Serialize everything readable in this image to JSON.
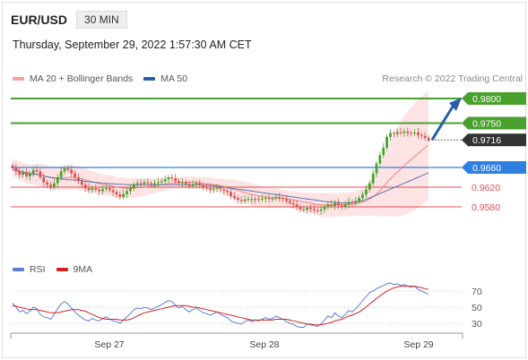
{
  "header": {
    "symbol": "EUR/USD",
    "timeframe": "30 MIN"
  },
  "datetime": "Thursday, September 29, 2022 1:57:30 AM CET",
  "credit": "Research © 2022 Trading Central",
  "colors": {
    "up_candle": "#4aa02c",
    "down_candle": "#d9534f",
    "bb_fill": "#fde0e0",
    "ma20": "#f08080",
    "ma50": "#5577bb",
    "resistance": "#4aa02c",
    "pivot": "#2f7fe0",
    "support": "#e05050",
    "arrow": "#2a5da8",
    "rsi": "#5b7fd6",
    "rsi_ma": "#d62020",
    "last_price_bg": "#333333"
  },
  "chart_data": [
    {
      "type": "candlestick",
      "title": "",
      "legend": [
        {
          "name": "MA 20 + Bollinger Bands",
          "color": "#f08080"
        },
        {
          "name": "MA 50",
          "color": "#2a5da8"
        }
      ],
      "legend_position": "top-left",
      "x_ticks": [
        "Sep 27",
        "Sep 28",
        "Sep 29"
      ],
      "ylim": [
        0.952,
        0.984
      ],
      "grid": false,
      "close": [
        0.966,
        0.9652,
        0.9645,
        0.965,
        0.9642,
        0.9648,
        0.9655,
        0.9652,
        0.964,
        0.963,
        0.9625,
        0.962,
        0.9628,
        0.964,
        0.9652,
        0.9658,
        0.9655,
        0.9648,
        0.964,
        0.9632,
        0.9625,
        0.9618,
        0.9614,
        0.9618,
        0.9615,
        0.9612,
        0.9616,
        0.9618,
        0.9614,
        0.961,
        0.9605,
        0.96,
        0.9606,
        0.9612,
        0.9618,
        0.9625,
        0.9628,
        0.9627,
        0.963,
        0.9628,
        0.9626,
        0.9628,
        0.963,
        0.9632,
        0.9636,
        0.964,
        0.9638,
        0.9632,
        0.9628,
        0.963,
        0.9626,
        0.9622,
        0.9625,
        0.9628,
        0.9624,
        0.962,
        0.9618,
        0.9615,
        0.9617,
        0.9619,
        0.9616,
        0.9613,
        0.961,
        0.9602,
        0.9598,
        0.9594,
        0.9592,
        0.9595,
        0.9596,
        0.9594,
        0.9596,
        0.9595,
        0.9597,
        0.9598,
        0.9596,
        0.9597,
        0.96,
        0.9598,
        0.9596,
        0.9592,
        0.9588,
        0.9585,
        0.958,
        0.9575,
        0.9574,
        0.9578,
        0.9576,
        0.9573,
        0.9572,
        0.9575,
        0.958,
        0.9585,
        0.9582,
        0.9588,
        0.9583,
        0.958,
        0.9585,
        0.959,
        0.9588,
        0.9592,
        0.9598,
        0.9605,
        0.9615,
        0.9628,
        0.9648,
        0.9668,
        0.9685,
        0.97,
        0.9722,
        0.973,
        0.9728,
        0.9732,
        0.973,
        0.9733,
        0.973,
        0.9729,
        0.9731,
        0.9726,
        0.9724,
        0.972,
        0.9716
      ],
      "series": [
        {
          "name": "MA 20",
          "values": [
            0.966,
            0.9657,
            0.9653,
            0.965,
            0.9647,
            0.9646,
            0.9646,
            0.9646,
            0.9645,
            0.9643,
            0.9641,
            0.9639,
            0.9638,
            0.9638,
            0.9638,
            0.9639,
            0.9639,
            0.964,
            0.9639,
            0.9638,
            0.9637,
            0.9635,
            0.9633,
            0.9631,
            0.9629,
            0.9627,
            0.9625,
            0.9624,
            0.9623,
            0.9622,
            0.962,
            0.9619,
            0.9618,
            0.9618,
            0.9618,
            0.9618,
            0.9619,
            0.9619,
            0.962,
            0.9621,
            0.9622,
            0.9623,
            0.9624,
            0.9625,
            0.9626,
            0.9627,
            0.9628,
            0.9629,
            0.9629,
            0.963,
            0.963,
            0.963,
            0.963,
            0.9629,
            0.9629,
            0.9628,
            0.9627,
            0.9626,
            0.9625,
            0.9624,
            0.9623,
            0.9621,
            0.9619,
            0.9617,
            0.9615,
            0.9613,
            0.9611,
            0.9609,
            0.9607,
            0.9605,
            0.9604,
            0.9602,
            0.9601,
            0.96,
            0.9599,
            0.9598,
            0.9598,
            0.9597,
            0.9597,
            0.9596,
            0.9595,
            0.9594,
            0.9593,
            0.9591,
            0.959,
            0.9589,
            0.9588,
            0.9586,
            0.9585,
            0.9584,
            0.9584,
            0.9584,
            0.9584,
            0.9584,
            0.9584,
            0.9585,
            0.9585,
            0.9585,
            0.9586,
            0.9587,
            0.9588,
            0.959,
            0.9592,
            0.9596,
            0.96,
            0.9606,
            0.9613,
            0.9621,
            0.9629,
            0.9637,
            0.9644,
            0.9651,
            0.9657,
            0.9664,
            0.967,
            0.9676,
            0.9682,
            0.9688,
            0.9694,
            0.97,
            0.9705
          ]
        },
        {
          "name": "MA 50",
          "values": [
            0.9655,
            0.9654,
            0.9652,
            0.9651,
            0.965,
            0.9648,
            0.9647,
            0.9646,
            0.9645,
            0.9643,
            0.9641,
            0.964,
            0.9639,
            0.9638,
            0.9637,
            0.9636,
            0.9635,
            0.9635,
            0.9634,
            0.9634,
            0.9633,
            0.9632,
            0.9631,
            0.963,
            0.963,
            0.9629,
            0.9628,
            0.9628,
            0.9627,
            0.9627,
            0.9626,
            0.9626,
            0.9626,
            0.9625,
            0.9625,
            0.9625,
            0.9625,
            0.9625,
            0.9625,
            0.9625,
            0.9625,
            0.9625,
            0.9625,
            0.9625,
            0.9625,
            0.9625,
            0.9625,
            0.9625,
            0.9625,
            0.9625,
            0.9625,
            0.9625,
            0.9625,
            0.9625,
            0.9625,
            0.9624,
            0.9624,
            0.9623,
            0.9623,
            0.9622,
            0.9621,
            0.962,
            0.9619,
            0.9618,
            0.9617,
            0.9616,
            0.9615,
            0.9614,
            0.9613,
            0.9612,
            0.9611,
            0.961,
            0.9609,
            0.9608,
            0.9607,
            0.9606,
            0.9605,
            0.9604,
            0.9603,
            0.9602,
            0.9601,
            0.96,
            0.9599,
            0.9598,
            0.9597,
            0.9596,
            0.9595,
            0.9594,
            0.9593,
            0.9592,
            0.9591,
            0.959,
            0.959,
            0.9589,
            0.9589,
            0.9588,
            0.9588,
            0.9588,
            0.9589,
            0.959,
            0.9591,
            0.9593,
            0.9595,
            0.9598,
            0.9601,
            0.9604,
            0.9607,
            0.961,
            0.9613,
            0.9616,
            0.9619,
            0.9622,
            0.9625,
            0.9628,
            0.9631,
            0.9634,
            0.9637,
            0.964,
            0.9643,
            0.9646,
            0.9649
          ]
        }
      ],
      "bb_width": [
        0.0018,
        0.0018,
        0.0019,
        0.0019,
        0.002,
        0.002,
        0.0021,
        0.0022,
        0.0022,
        0.0023,
        0.0023,
        0.0023,
        0.0024,
        0.0024,
        0.0024,
        0.0025,
        0.0025,
        0.0025,
        0.0024,
        0.0024,
        0.0023,
        0.0023,
        0.0022,
        0.0022,
        0.0022,
        0.0021,
        0.0021,
        0.0021,
        0.0021,
        0.0021,
        0.0021,
        0.0021,
        0.0021,
        0.002,
        0.002,
        0.0019,
        0.0019,
        0.0018,
        0.0018,
        0.0017,
        0.0016,
        0.0015,
        0.0014,
        0.0014,
        0.0013,
        0.0012,
        0.0012,
        0.0012,
        0.0012,
        0.0012,
        0.0012,
        0.0012,
        0.0012,
        0.0012,
        0.0012,
        0.0012,
        0.0013,
        0.0013,
        0.0014,
        0.0014,
        0.0015,
        0.0016,
        0.0017,
        0.0018,
        0.0019,
        0.002,
        0.0021,
        0.0022,
        0.0022,
        0.0022,
        0.0022,
        0.0022,
        0.0021,
        0.0021,
        0.0021,
        0.002,
        0.002,
        0.0019,
        0.0018,
        0.0017,
        0.0017,
        0.0017,
        0.0018,
        0.0018,
        0.0019,
        0.002,
        0.0021,
        0.0022,
        0.0023,
        0.0024,
        0.0024,
        0.0024,
        0.0024,
        0.0024,
        0.0024,
        0.0024,
        0.0024,
        0.0024,
        0.0025,
        0.0025,
        0.0026,
        0.0028,
        0.003,
        0.0033,
        0.0038,
        0.0045,
        0.0052,
        0.006,
        0.0068,
        0.0076,
        0.0083,
        0.009,
        0.0096,
        0.01,
        0.0104,
        0.0106,
        0.0108,
        0.011,
        0.011,
        0.011,
        0.011
      ],
      "levels": [
        {
          "value": 0.98,
          "label": "0.9800",
          "role": "resistance"
        },
        {
          "value": 0.975,
          "label": "0.9750",
          "role": "resistance"
        },
        {
          "value": 0.966,
          "label": "0.9660",
          "role": "pivot"
        },
        {
          "value": 0.962,
          "label": "0.9620",
          "role": "support"
        },
        {
          "value": 0.958,
          "label": "0.9580",
          "role": "support"
        }
      ],
      "last_price": {
        "value": 0.9716,
        "label": "0.9716"
      },
      "projection": {
        "from": 0.9716,
        "to": 0.98
      }
    },
    {
      "type": "line",
      "title": "",
      "legend": [
        {
          "name": "RSI",
          "color": "#5b7fd6"
        },
        {
          "name": "9MA",
          "color": "#d62020"
        }
      ],
      "legend_position": "top-left",
      "ylim": [
        20,
        80
      ],
      "y_ticks": [
        70,
        50,
        30
      ],
      "series": [
        {
          "name": "RSI",
          "values": [
            55,
            50,
            44,
            46,
            42,
            45,
            50,
            48,
            41,
            38,
            37,
            35,
            41,
            48,
            54,
            57,
            54,
            49,
            44,
            40,
            37,
            34,
            33,
            36,
            34,
            33,
            36,
            38,
            35,
            33,
            32,
            30,
            34,
            38,
            42,
            47,
            49,
            48,
            50,
            49,
            47,
            49,
            51,
            53,
            56,
            58,
            57,
            52,
            49,
            51,
            47,
            44,
            47,
            49,
            46,
            43,
            42,
            40,
            42,
            44,
            41,
            39,
            37,
            33,
            31,
            30,
            29,
            32,
            34,
            32,
            34,
            33,
            35,
            37,
            35,
            36,
            39,
            37,
            35,
            32,
            30,
            29,
            26,
            25,
            25,
            29,
            28,
            27,
            26,
            29,
            34,
            39,
            37,
            43,
            39,
            37,
            41,
            46,
            44,
            48,
            53,
            58,
            63,
            68,
            70,
            73,
            75,
            77,
            79,
            80,
            78,
            79,
            77,
            78,
            76,
            75,
            76,
            72,
            70,
            68,
            66
          ]
        },
        {
          "name": "9MA",
          "values": [
            52,
            51,
            50,
            49,
            48,
            47,
            47,
            47,
            46,
            45,
            44,
            43,
            43,
            43,
            44,
            45,
            46,
            47,
            47,
            47,
            46,
            45,
            43,
            41,
            39,
            37,
            36,
            35,
            35,
            35,
            35,
            34,
            34,
            34,
            35,
            37,
            39,
            41,
            43,
            44,
            45,
            46,
            47,
            48,
            49,
            50,
            51,
            52,
            52,
            52,
            52,
            51,
            50,
            50,
            49,
            48,
            47,
            46,
            45,
            44,
            43,
            42,
            41,
            40,
            39,
            38,
            37,
            36,
            35,
            34,
            34,
            34,
            34,
            34,
            34,
            34,
            35,
            35,
            35,
            35,
            34,
            33,
            32,
            31,
            30,
            29,
            29,
            28,
            28,
            28,
            29,
            30,
            31,
            33,
            34,
            35,
            37,
            39,
            40,
            42,
            44,
            47,
            50,
            54,
            57,
            61,
            64,
            67,
            70,
            72,
            74,
            75,
            76,
            76,
            76,
            76,
            76,
            75,
            74,
            73,
            72
          ]
        }
      ]
    }
  ]
}
